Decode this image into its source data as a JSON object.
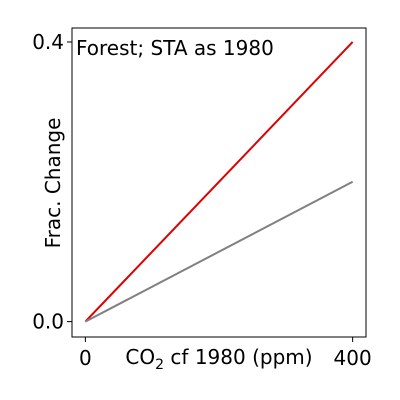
{
  "chart_data": {
    "type": "line",
    "title": "Forest; STA as 1980",
    "xlabel_main": "CO",
    "xlabel_sub": "2",
    "xlabel_rest": " cf 1980 (ppm)",
    "ylabel": "Frac. Change",
    "xlim": [
      -20,
      420
    ],
    "ylim": [
      -0.022,
      0.42
    ],
    "x_ticks": [
      {
        "value": 0,
        "label": "0"
      },
      {
        "value": 400,
        "label": "400"
      }
    ],
    "y_ticks": [
      {
        "value": 0.0,
        "label": "0.0"
      },
      {
        "value": 0.4,
        "label": "0.4"
      }
    ],
    "series": [
      {
        "color": "#dd0000",
        "x": [
          0,
          400
        ],
        "y": [
          0.0,
          0.4
        ]
      },
      {
        "color": "#808080",
        "x": [
          0,
          400
        ],
        "y": [
          0.0,
          0.2
        ]
      }
    ]
  }
}
